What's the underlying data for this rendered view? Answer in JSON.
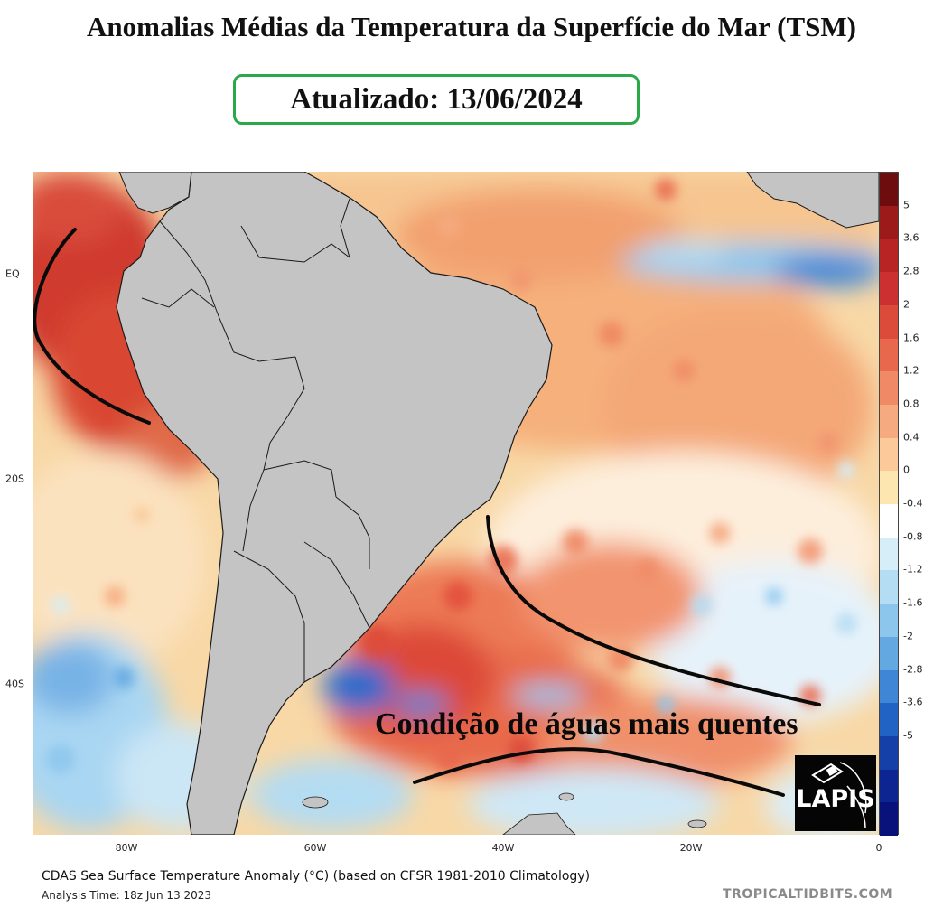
{
  "title": "Anomalias Médias da Temperatura da Superfície do Mar (TSM)",
  "updated": "Atualizado: 13/06/2024",
  "annotation": "Condição de águas mais quentes",
  "caption": "CDAS Sea Surface Temperature Anomaly (°C) (based on CFSR 1981-2010 Climatology)",
  "analysis_time": "Analysis Time: 18z Jun 13 2023",
  "credit": "TROPICALTIDBITS.COM",
  "logo_text": "LAPIS",
  "lat_labels": [
    "EQ",
    "20S",
    "40S"
  ],
  "lon_labels": [
    "80W",
    "60W",
    "40W",
    "20W",
    "0"
  ],
  "colorbar": {
    "labels": [
      "5",
      "3.6",
      "2.8",
      "2",
      "1.6",
      "1.2",
      "0.8",
      "0.4",
      "0",
      "-0.4",
      "-0.8",
      "-1.2",
      "-1.6",
      "-2",
      "-2.8",
      "-3.6",
      "-5"
    ],
    "colors": [
      "#6e0d0d",
      "#9c1a1a",
      "#b82323",
      "#cc3030",
      "#dc4a3a",
      "#e8684e",
      "#f08a66",
      "#f6aa80",
      "#fbc99a",
      "#fde6b0",
      "#ffffff",
      "#d6eef8",
      "#b4dcf2",
      "#8cc6ec",
      "#64a8e2",
      "#3f86d6",
      "#2163c4",
      "#1440a8",
      "#0c2590",
      "#08127a"
    ],
    "colors_label": "color scale from hot (top) to cold (bottom)"
  },
  "colors": {
    "land": "#c4c4c4",
    "border": "#1a1a1a",
    "box_border": "#2aa84a",
    "warm_deep": "#d93a2c",
    "warm": "#f08b62",
    "warm_light": "#f8c08a",
    "cool": "#9fd0f0",
    "cold": "#2a6ccb"
  }
}
